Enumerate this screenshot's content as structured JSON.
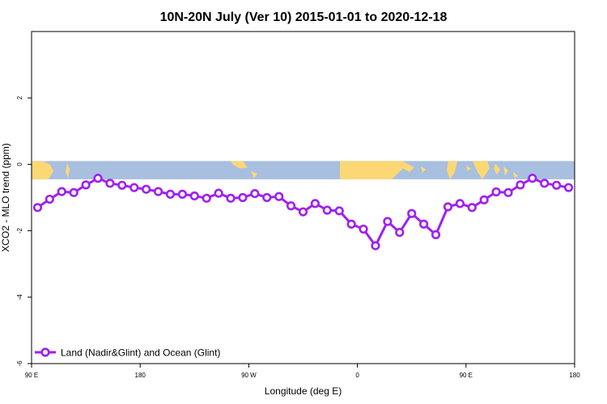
{
  "chart_data": {
    "type": "line",
    "title": "10N-20N July (Ver 10)   2015-01-01 to 2020-12-18",
    "xlabel": "Longitude (deg E)",
    "ylabel": "XCO2 - MLO trend (ppm)",
    "xlim": [
      90,
      540
    ],
    "ylim": [
      -6,
      4
    ],
    "x_ticks": [
      {
        "value": 90,
        "label": "90 E"
      },
      {
        "value": 180,
        "label": "180"
      },
      {
        "value": 270,
        "label": "90 W"
      },
      {
        "value": 360,
        "label": "0"
      },
      {
        "value": 450,
        "label": "90 E"
      },
      {
        "value": 540,
        "label": "180"
      }
    ],
    "y_ticks": [
      {
        "value": -6,
        "label": "-6"
      },
      {
        "value": -4,
        "label": "-4"
      },
      {
        "value": -2,
        "label": "-2"
      },
      {
        "value": 0,
        "label": "0"
      },
      {
        "value": 2,
        "label": "2"
      }
    ],
    "legend_position": "bottom-left",
    "map_band": {
      "y_range": [
        -0.45,
        0.1
      ],
      "ocean_color": "#a8bfe0",
      "land_color": "#fcd874"
    },
    "series": [
      {
        "name": "Land (Nadir&Glint) and Ocean (Glint)",
        "color": "#a020f0",
        "x": [
          95,
          105,
          115,
          125,
          135,
          145,
          155,
          165,
          175,
          185,
          195,
          205,
          215,
          225,
          235,
          245,
          255,
          265,
          275,
          285,
          295,
          305,
          315,
          325,
          335,
          345,
          355,
          365,
          375,
          385,
          395,
          405,
          415,
          425,
          435,
          445,
          455,
          465,
          475,
          485,
          495,
          505,
          515,
          525,
          535
        ],
        "y": [
          -1.3,
          -1.05,
          -0.82,
          -0.85,
          -0.62,
          -0.42,
          -0.57,
          -0.63,
          -0.7,
          -0.75,
          -0.82,
          -0.9,
          -0.9,
          -0.95,
          -1.02,
          -0.87,
          -1.02,
          -1.0,
          -0.88,
          -1.0,
          -0.97,
          -1.25,
          -1.43,
          -1.18,
          -1.38,
          -1.4,
          -1.8,
          -1.95,
          -2.45,
          -1.72,
          -2.05,
          -1.48,
          -1.8,
          -2.12,
          -1.28,
          -1.18,
          -1.3,
          -1.07,
          -0.83,
          -0.85,
          -0.62,
          -0.42,
          -0.57,
          -0.63,
          -0.7
        ]
      }
    ]
  }
}
